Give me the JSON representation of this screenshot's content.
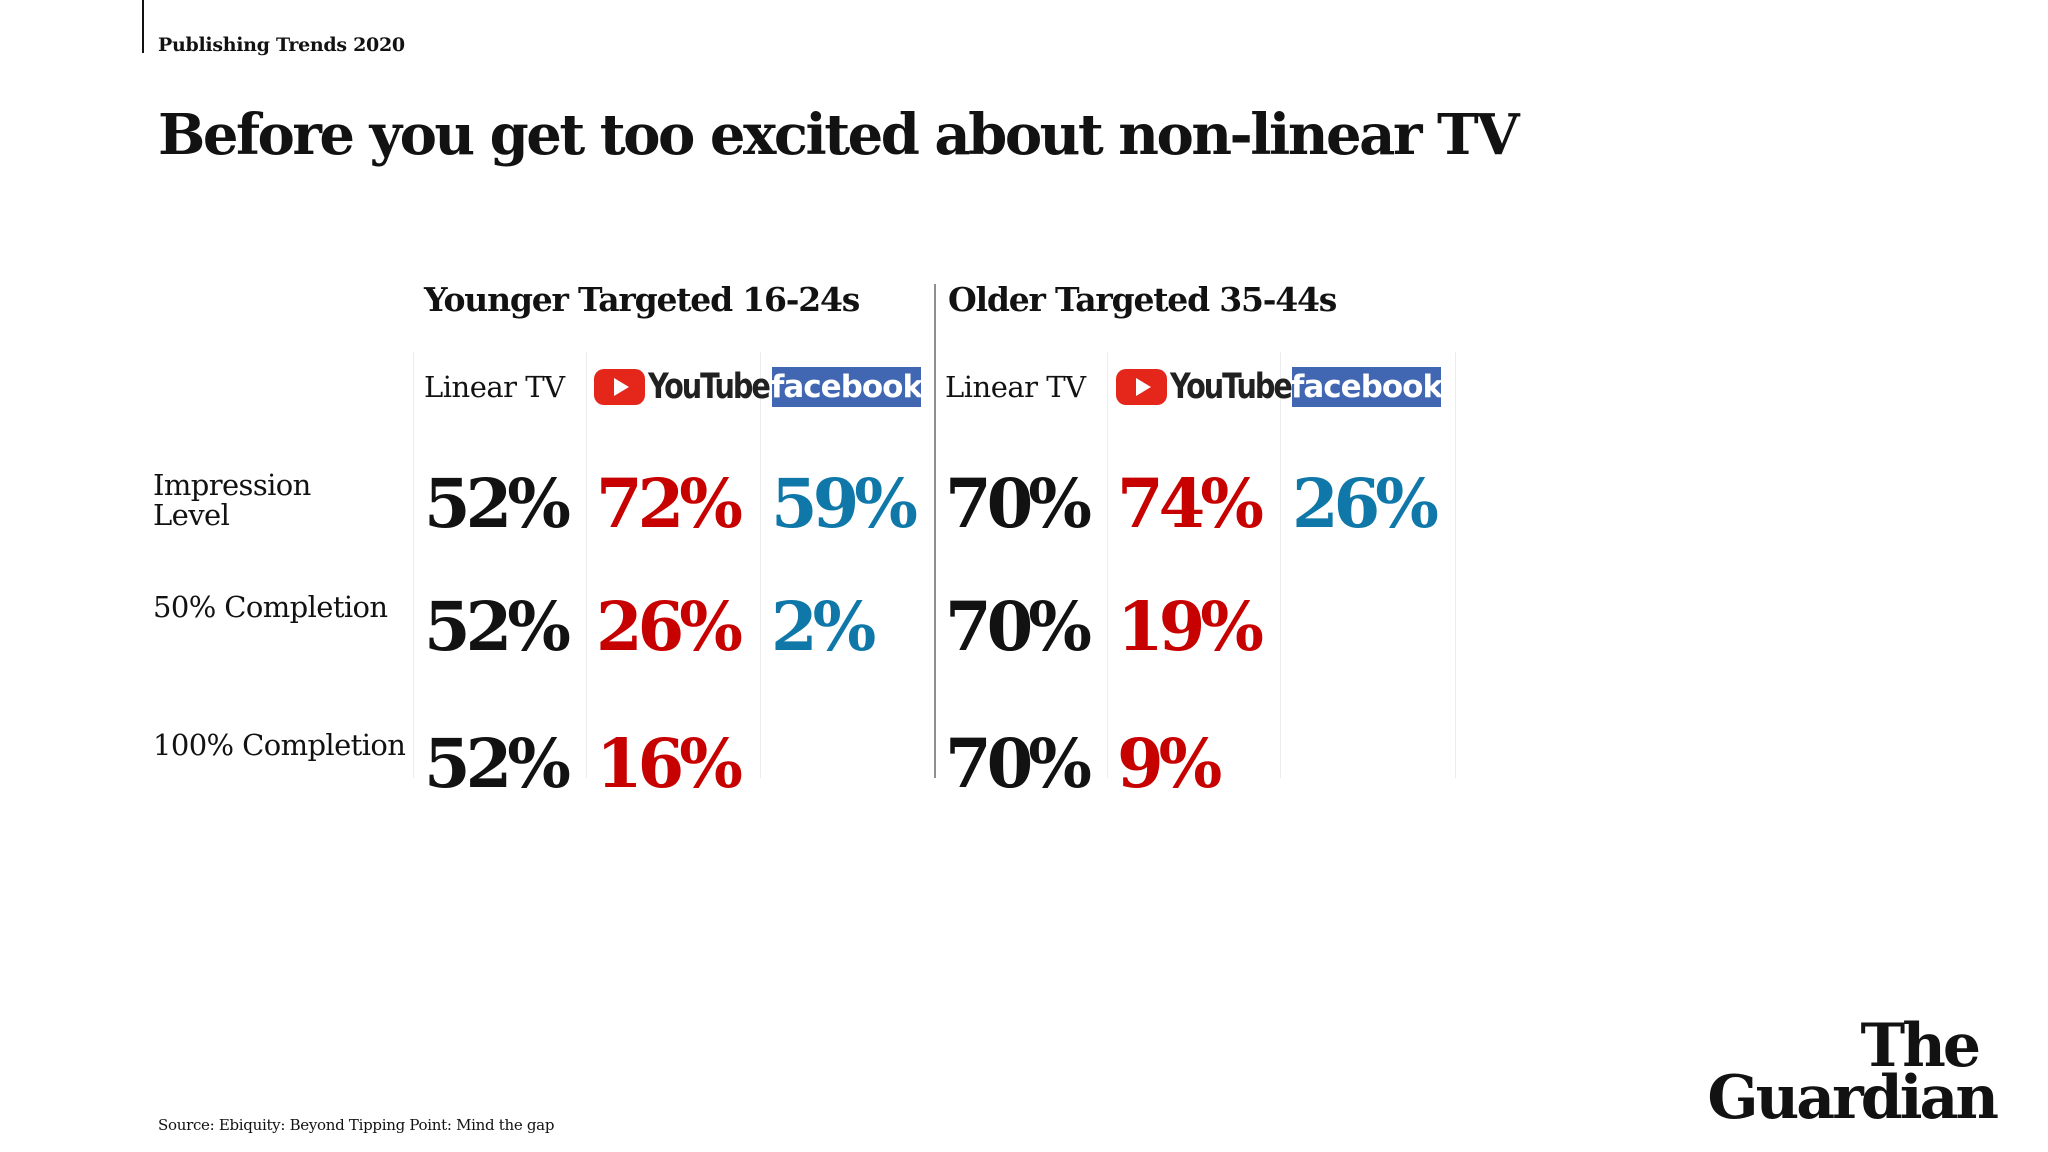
{
  "header": {
    "eyebrow": "Publishing Trends 2020",
    "headline": "Before you get too excited about non-linear TV"
  },
  "chart_data": {
    "type": "table",
    "title": "Before you get too excited about non-linear TV",
    "groups": [
      {
        "name": "Younger Targeted 16-24s",
        "columns": [
          {
            "channel": "Linear TV",
            "values": [
              "52%",
              "52%",
              "52%"
            ]
          },
          {
            "channel": "YouTube",
            "values": [
              "72%",
              "26%",
              "16%"
            ]
          },
          {
            "channel": "facebook",
            "values": [
              "59%",
              "2%",
              null
            ]
          }
        ]
      },
      {
        "name": "Older Targeted 35-44s",
        "columns": [
          {
            "channel": "Linear TV",
            "values": [
              "70%",
              "70%",
              "70%"
            ]
          },
          {
            "channel": "YouTube",
            "values": [
              "74%",
              "19%",
              "9%"
            ]
          },
          {
            "channel": "facebook",
            "values": [
              "26%",
              null,
              null
            ]
          }
        ]
      }
    ],
    "rows": [
      {
        "label_line1": "Impression",
        "label_line2": "Level"
      },
      {
        "label_line1": "50% Completion",
        "label_line2": ""
      },
      {
        "label_line1": "100% Completion",
        "label_line2": ""
      }
    ]
  },
  "logos": {
    "youtube_word": "YouTube",
    "facebook_word": "facebook"
  },
  "colors": {
    "linear": "#121212",
    "youtube": "#c70000",
    "facebook": "#0f78a9",
    "youtube_logo": "#e5261b",
    "facebook_logo": "#4267b2"
  },
  "footer": {
    "source": "Source: Ebiquity: Beyond Tipping Point: Mind the gap",
    "masthead_line1": "The",
    "masthead_line2": "Guardian"
  }
}
